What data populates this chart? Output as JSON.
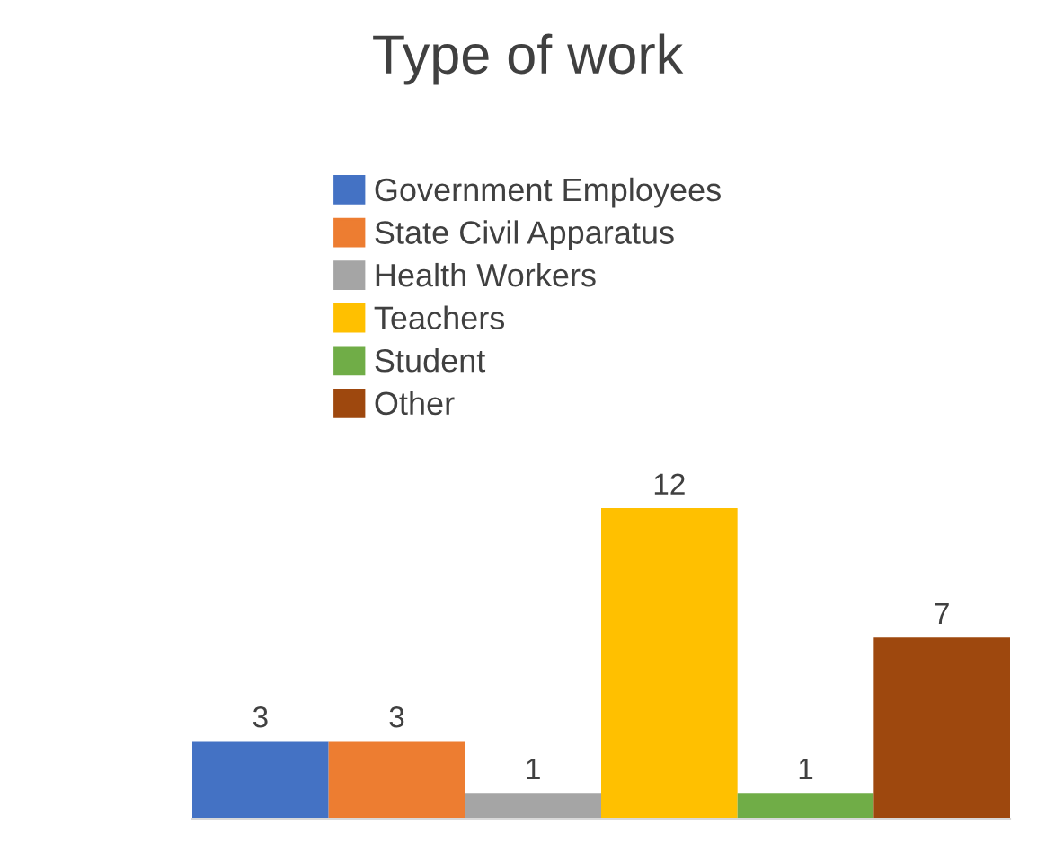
{
  "chart_data": {
    "type": "bar",
    "title": "Type of work",
    "categories": [
      null
    ],
    "series": [
      {
        "name": "Government Employees",
        "color": "#4472c4",
        "values": [
          3
        ]
      },
      {
        "name": "State Civil Apparatus",
        "color": "#ed7d31",
        "values": [
          3
        ]
      },
      {
        "name": "Health Workers",
        "color": "#a5a5a5",
        "values": [
          1
        ]
      },
      {
        "name": "Teachers",
        "color": "#ffc000",
        "values": [
          12
        ]
      },
      {
        "name": "Student",
        "color": "#70ad47",
        "values": [
          1
        ]
      },
      {
        "name": "Other",
        "color": "#9e480e",
        "values": [
          7
        ]
      }
    ],
    "data_labels": true,
    "legend": "top"
  }
}
